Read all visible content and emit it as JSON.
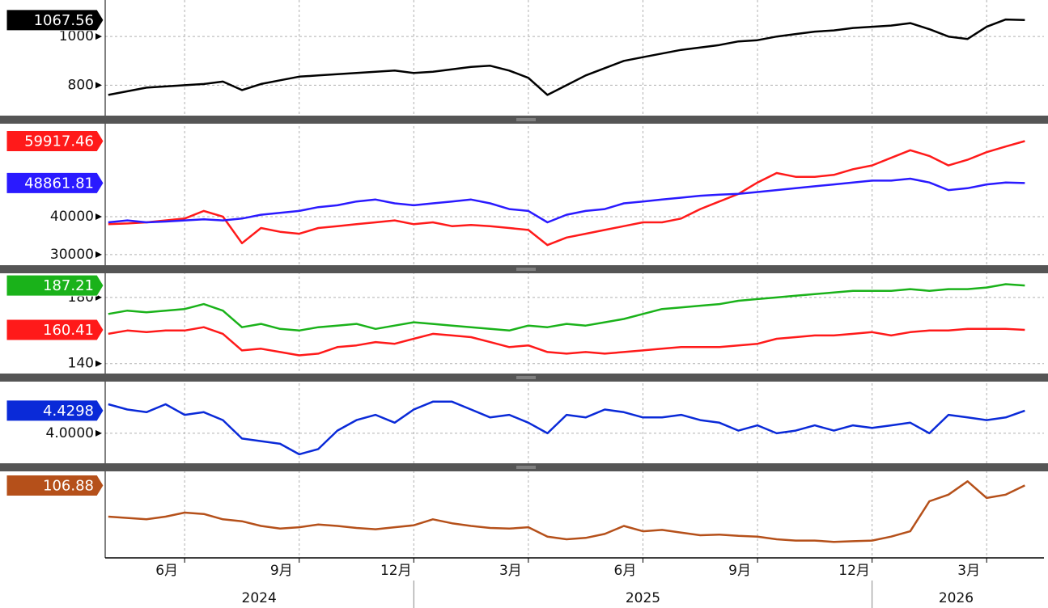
{
  "chart_data": {
    "type": "line",
    "x": [
      4,
      4.5,
      5,
      5.5,
      6,
      6.5,
      7,
      7.5,
      8,
      8.5,
      9,
      9.5,
      10,
      10.5,
      11,
      11.5,
      12,
      12.5,
      13,
      13.5,
      14,
      14.5,
      15,
      15.5,
      16,
      16.5,
      17,
      17.5,
      18,
      18.5,
      19,
      19.5,
      20,
      20.5,
      21,
      21.5,
      22,
      22.5,
      23,
      23.5,
      24,
      24.5,
      25,
      25.5,
      26,
      26.5,
      27,
      27.5,
      28
    ],
    "xlim": [
      3.92,
      28.5
    ],
    "xticks": [
      {
        "value": 6,
        "label": "6月"
      },
      {
        "value": 9,
        "label": "9月"
      },
      {
        "value": 12,
        "label": "12月"
      },
      {
        "value": 15,
        "label": "3月"
      },
      {
        "value": 18,
        "label": "6月"
      },
      {
        "value": 21,
        "label": "9月"
      },
      {
        "value": 24,
        "label": "12月"
      },
      {
        "value": 27,
        "label": "3月"
      }
    ],
    "year_labels": [
      {
        "value": 7.95,
        "label": "2024"
      },
      {
        "value": 18,
        "label": "2025"
      },
      {
        "value": 26.2,
        "label": "2026"
      }
    ],
    "year_dividers": [
      12,
      24
    ],
    "grid": true,
    "panels": [
      {
        "ylim": [
          675,
          1150
        ],
        "yticks": [
          800,
          1000
        ],
        "series": [
          {
            "color": "#000000",
            "last_value": 1067.56,
            "values": [
              760,
              775,
              790,
              795,
              800,
              805,
              815,
              780,
              805,
              820,
              835,
              840,
              845,
              850,
              855,
              860,
              850,
              855,
              865,
              875,
              880,
              860,
              830,
              760,
              800,
              840,
              870,
              900,
              915,
              930,
              945,
              955,
              965,
              980,
              985,
              1000,
              1010,
              1020,
              1025,
              1035,
              1040,
              1045,
              1055,
              1030,
              1000,
              990,
              1040,
              1070,
              1067.56
            ]
          }
        ]
      },
      {
        "ylim": [
          27200,
          64500
        ],
        "yticks": [
          30000,
          40000
        ],
        "series": [
          {
            "color": "#ff1a1a",
            "last_value": 59917.46,
            "values": [
              38000,
              38200,
              38500,
              39000,
              39500,
              41500,
              40000,
              33000,
              37000,
              36000,
              35500,
              37000,
              37500,
              38000,
              38500,
              39000,
              38000,
              38500,
              37500,
              37800,
              37500,
              37000,
              36500,
              32500,
              34500,
              35500,
              36500,
              37500,
              38500,
              38500,
              39500,
              42000,
              44000,
              46000,
              49000,
              51500,
              50500,
              50500,
              51000,
              52500,
              53500,
              55500,
              57500,
              56000,
              53500,
              55000,
              57000,
              58500,
              59917.46
            ]
          },
          {
            "color": "#2a1aff",
            "last_value": 48861.81,
            "values": [
              38500,
              39000,
              38500,
              38700,
              39000,
              39300,
              39000,
              39500,
              40500,
              41000,
              41500,
              42500,
              43000,
              44000,
              44500,
              43500,
              43000,
              43500,
              44000,
              44500,
              43500,
              42000,
              41500,
              38500,
              40500,
              41500,
              42000,
              43500,
              44000,
              44500,
              45000,
              45500,
              45800,
              46000,
              46500,
              47000,
              47500,
              48000,
              48500,
              49000,
              49500,
              49500,
              50000,
              49000,
              47000,
              47500,
              48500,
              49000,
              48861.81
            ]
          }
        ]
      },
      {
        "ylim": [
          134,
          194.6
        ],
        "yticks": [
          140,
          180
        ],
        "series": [
          {
            "color": "#1ab21a",
            "last_value": 187.21,
            "values": [
              170,
              172,
              171,
              172,
              173,
              176,
              172,
              162,
              164,
              161,
              160,
              162,
              163,
              164,
              161,
              163,
              165,
              164,
              163,
              162,
              161,
              160,
              163,
              162,
              164,
              163,
              165,
              167,
              170,
              173,
              174,
              175,
              176,
              178,
              179,
              180,
              181,
              182,
              183,
              184,
              184,
              184,
              185,
              184,
              185,
              185,
              186,
              188,
              187.21
            ]
          },
          {
            "color": "#ff1a1a",
            "last_value": 160.41,
            "values": [
              158,
              160,
              159,
              160,
              160,
              162,
              158,
              148,
              149,
              147,
              145,
              146,
              150,
              151,
              153,
              152,
              155,
              158,
              157,
              156,
              153,
              150,
              151,
              147,
              146,
              147,
              146,
              147,
              148,
              149,
              150,
              150,
              150,
              151,
              152,
              155,
              156,
              157,
              157,
              158,
              159,
              157,
              159,
              160,
              160,
              161,
              161,
              161,
              160.41
            ]
          }
        ]
      },
      {
        "ylim": [
          3.43,
          4.98
        ],
        "yticks": [
          {
            "value": 4,
            "label": "4.0000"
          }
        ],
        "series": [
          {
            "color": "#0a2ad8",
            "last_value": 4.4298,
            "values": [
              4.55,
              4.45,
              4.4,
              4.55,
              4.35,
              4.4,
              4.25,
              3.9,
              3.85,
              3.8,
              3.6,
              3.7,
              4.05,
              4.25,
              4.35,
              4.2,
              4.45,
              4.6,
              4.6,
              4.45,
              4.3,
              4.35,
              4.2,
              4.0,
              4.35,
              4.3,
              4.45,
              4.4,
              4.3,
              4.3,
              4.35,
              4.25,
              4.2,
              4.05,
              4.15,
              4.0,
              4.05,
              4.15,
              4.05,
              4.15,
              4.1,
              4.15,
              4.2,
              4.0,
              4.35,
              4.3,
              4.25,
              4.3,
              4.4298
            ]
          }
        ]
      },
      {
        "ylim": [
          96,
          109
        ],
        "yticks": [],
        "series": [
          {
            "color": "#b5501a",
            "last_value": 106.88,
            "values": [
              102.2,
              102,
              101.8,
              102.2,
              102.8,
              102.6,
              101.8,
              101.5,
              100.8,
              100.4,
              100.6,
              101,
              100.8,
              100.5,
              100.3,
              100.6,
              100.9,
              101.8,
              101.2,
              100.8,
              100.5,
              100.4,
              100.6,
              99.2,
              98.8,
              99.0,
              99.6,
              100.8,
              100.0,
              100.2,
              99.8,
              99.4,
              99.5,
              99.3,
              99.2,
              98.8,
              98.6,
              98.6,
              98.4,
              98.5,
              98.6,
              99.2,
              100,
              104.5,
              105.5,
              107.5,
              105,
              105.5,
              106.88
            ]
          }
        ]
      }
    ]
  }
}
